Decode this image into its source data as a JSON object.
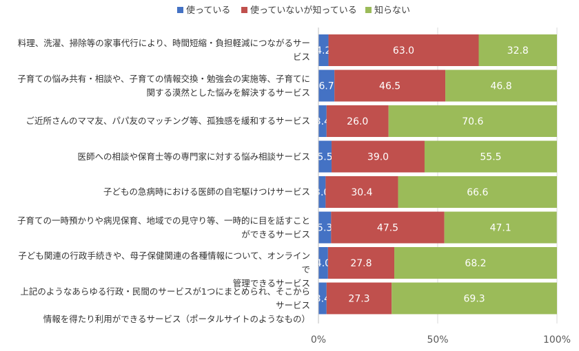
{
  "chart_data": {
    "type": "bar",
    "orientation": "horizontal",
    "stacked": true,
    "legend_position": "top",
    "categories": [
      "料理、洗濯、掃除等の家事代行により、時間短縮・負担軽減につながるサー\nビス",
      "子育ての悩み共有・相談や、子育ての情報交換・勉強会の実施等、子育てに\n関する漠然とした悩みを解決するサービス",
      "ご近所さんのママ友、パパ友のマッチング等、孤独感を緩和するサービス",
      "医師への相談や保育士等の専門家に対する悩み相談サービス",
      "子どもの急病時における医師の自宅駆けつけサービス",
      "子育ての一時預かりや病児保育、地域での見守り等、一時的に目を話すこと\nができるサービス",
      "子ども関連の行政手続きや、母子保健関連の各種情報について、オンラインで\n管理できるサービス",
      "上記のようなあらゆる行政・民間のサービスが1つにまとめられ、そこからサービス\n情報を得たり利用ができるサービス（ポータルサイトのようなもの）"
    ],
    "series": [
      {
        "name": "使っている",
        "color": "#4472C4",
        "values": [
          4.2,
          6.7,
          3.4,
          5.5,
          3.0,
          5.3,
          4.0,
          3.4
        ],
        "labels": [
          "4.2",
          "6.7",
          "3.4",
          "5.5",
          "3.0",
          "5.3",
          "4.0",
          "3.4"
        ]
      },
      {
        "name": "使っていないが知っている",
        "color": "#C0504D",
        "values": [
          63.0,
          46.5,
          26.0,
          39.0,
          30.4,
          47.5,
          27.8,
          27.3
        ],
        "labels": [
          "63.0",
          "46.5",
          "26.0",
          "39.0",
          "30.4",
          "47.5",
          "27.8",
          "27.3"
        ]
      },
      {
        "name": "知らない",
        "color": "#9BBB59",
        "values": [
          32.8,
          46.8,
          70.6,
          55.5,
          66.6,
          47.1,
          68.2,
          69.3
        ],
        "labels": [
          "32.8",
          "46.8",
          "70.6",
          "55.5",
          "66.6",
          "47.1",
          "68.2",
          "69.3"
        ]
      }
    ],
    "xlim": [
      0,
      100
    ],
    "x_ticks": [
      0,
      50,
      100
    ],
    "x_tick_labels": [
      "0%",
      "50%",
      "100%"
    ],
    "grid": true
  }
}
